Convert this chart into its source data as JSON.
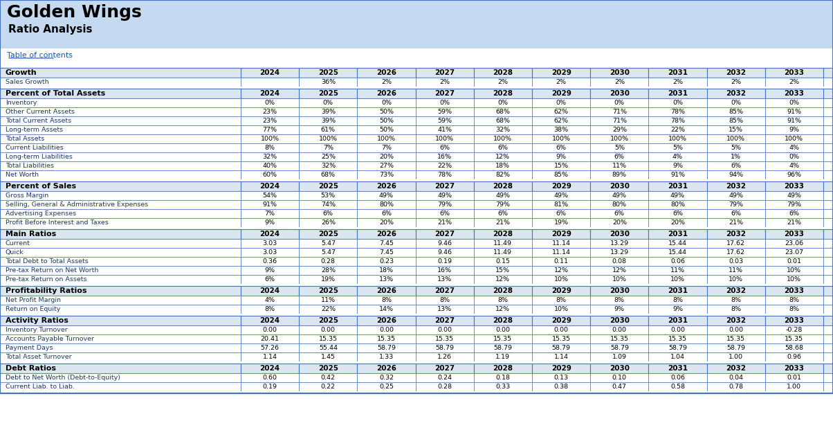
{
  "title": "Golden Wings",
  "subtitle": "Ratio Analysis",
  "link_text": "Table of contents",
  "header_bg": "#c5d9f1",
  "section_bg": "#dce6f1",
  "row_bg_white": "#ffffff",
  "row_bg_light": "#f0f4fa",
  "border_color": "#4472c4",
  "text_dark": "#000000",
  "text_blue": "#1f4e79",
  "link_color": "#1155cc",
  "years": [
    "2024",
    "2025",
    "2026",
    "2027",
    "2028",
    "2029",
    "2030",
    "2031",
    "2032",
    "2033"
  ],
  "sections": [
    {
      "name": "Growth",
      "rows": [
        {
          "label": "Sales Growth",
          "values": [
            "",
            "36%",
            "2%",
            "2%",
            "2%",
            "2%",
            "2%",
            "2%",
            "2%",
            "2%"
          ]
        }
      ]
    },
    {
      "name": "Percent of Total Assets",
      "rows": [
        {
          "label": "Inventory",
          "values": [
            "0%",
            "0%",
            "0%",
            "0%",
            "0%",
            "0%",
            "0%",
            "0%",
            "0%",
            "0%"
          ]
        },
        {
          "label": "Other Current Assets",
          "values": [
            "23%",
            "39%",
            "50%",
            "59%",
            "68%",
            "62%",
            "71%",
            "78%",
            "85%",
            "91%"
          ]
        },
        {
          "label": "Total Current Assets",
          "values": [
            "23%",
            "39%",
            "50%",
            "59%",
            "68%",
            "62%",
            "71%",
            "78%",
            "85%",
            "91%"
          ]
        },
        {
          "label": "Long-term Assets",
          "values": [
            "77%",
            "61%",
            "50%",
            "41%",
            "32%",
            "38%",
            "29%",
            "22%",
            "15%",
            "9%"
          ]
        },
        {
          "label": "Total Assets",
          "values": [
            "100%",
            "100%",
            "100%",
            "100%",
            "100%",
            "100%",
            "100%",
            "100%",
            "100%",
            "100%"
          ]
        },
        {
          "label": "Current Liabilities",
          "values": [
            "8%",
            "7%",
            "7%",
            "6%",
            "6%",
            "6%",
            "5%",
            "5%",
            "5%",
            "4%"
          ]
        },
        {
          "label": "Long-term Liabilities",
          "values": [
            "32%",
            "25%",
            "20%",
            "16%",
            "12%",
            "9%",
            "6%",
            "4%",
            "1%",
            "0%"
          ]
        },
        {
          "label": "Total Liabilities",
          "values": [
            "40%",
            "32%",
            "27%",
            "22%",
            "18%",
            "15%",
            "11%",
            "9%",
            "6%",
            "4%"
          ]
        },
        {
          "label": "Net Worth",
          "values": [
            "60%",
            "68%",
            "73%",
            "78%",
            "82%",
            "85%",
            "89%",
            "91%",
            "94%",
            "96%"
          ]
        }
      ]
    },
    {
      "name": "Percent of Sales",
      "rows": [
        {
          "label": "Gross Margin",
          "values": [
            "54%",
            "53%",
            "49%",
            "49%",
            "49%",
            "49%",
            "49%",
            "49%",
            "49%",
            "49%"
          ]
        },
        {
          "label": "Selling, General & Administrative Expenses",
          "values": [
            "91%",
            "74%",
            "80%",
            "79%",
            "79%",
            "81%",
            "80%",
            "80%",
            "79%",
            "79%"
          ]
        },
        {
          "label": "Advertising Expenses",
          "values": [
            "7%",
            "6%",
            "6%",
            "6%",
            "6%",
            "6%",
            "6%",
            "6%",
            "6%",
            "6%"
          ]
        },
        {
          "label": "Profit Before Interest and Taxes",
          "values": [
            "9%",
            "26%",
            "20%",
            "21%",
            "21%",
            "19%",
            "20%",
            "20%",
            "21%",
            "21%"
          ]
        }
      ]
    },
    {
      "name": "Main Ratios",
      "rows": [
        {
          "label": "Current",
          "values": [
            "3.03",
            "5.47",
            "7.45",
            "9.46",
            "11.49",
            "11.14",
            "13.29",
            "15.44",
            "17.62",
            "23.06"
          ]
        },
        {
          "label": "Quick",
          "values": [
            "3.03",
            "5.47",
            "7.45",
            "9.46",
            "11.49",
            "11.14",
            "13.29",
            "15.44",
            "17.62",
            "23.07"
          ]
        },
        {
          "label": "Total Debt to Total Assets",
          "values": [
            "0.36",
            "0.28",
            "0.23",
            "0.19",
            "0.15",
            "0.11",
            "0.08",
            "0.06",
            "0.03",
            "0.01"
          ]
        },
        {
          "label": "Pre-tax Return on Net Worth",
          "values": [
            "9%",
            "28%",
            "18%",
            "16%",
            "15%",
            "12%",
            "12%",
            "11%",
            "11%",
            "10%"
          ]
        },
        {
          "label": "Pre-tax Return on Assets",
          "values": [
            "6%",
            "19%",
            "13%",
            "13%",
            "12%",
            "10%",
            "10%",
            "10%",
            "10%",
            "10%"
          ]
        }
      ]
    },
    {
      "name": "Profitability Ratios",
      "rows": [
        {
          "label": "Net Profit Margin",
          "values": [
            "4%",
            "11%",
            "8%",
            "8%",
            "8%",
            "8%",
            "8%",
            "8%",
            "8%",
            "8%"
          ]
        },
        {
          "label": "Return on Equity",
          "values": [
            "8%",
            "22%",
            "14%",
            "13%",
            "12%",
            "10%",
            "9%",
            "9%",
            "8%",
            "8%"
          ]
        }
      ]
    },
    {
      "name": "Activity Ratios",
      "rows": [
        {
          "label": "Inventory Turnover",
          "values": [
            "0.00",
            "0.00",
            "0.00",
            "0.00",
            "0.00",
            "0.00",
            "0.00",
            "0.00",
            "0.00",
            "-0.28"
          ]
        },
        {
          "label": "Accounts Payable Turnover",
          "values": [
            "20.41",
            "15.35",
            "15.35",
            "15.35",
            "15.35",
            "15.35",
            "15.35",
            "15.35",
            "15.35",
            "15.35"
          ]
        },
        {
          "label": "Payment Days",
          "values": [
            "57.26",
            "55.44",
            "58.79",
            "58.79",
            "58.79",
            "58.79",
            "58.79",
            "58.79",
            "58.79",
            "58.68"
          ]
        },
        {
          "label": "Total Asset Turnover",
          "values": [
            "1.14",
            "1.45",
            "1.33",
            "1.26",
            "1.19",
            "1.14",
            "1.09",
            "1.04",
            "1.00",
            "0.96"
          ]
        }
      ]
    },
    {
      "name": "Debt Ratios",
      "rows": [
        {
          "label": "Debt to Net Worth (Debt-to-Equity)",
          "values": [
            "0.60",
            "0.42",
            "0.32",
            "0.24",
            "0.18",
            "0.13",
            "0.10",
            "0.06",
            "0.04",
            "0.01"
          ]
        },
        {
          "label": "Current Liab. to Liab.",
          "values": [
            "0.19",
            "0.22",
            "0.25",
            "0.28",
            "0.33",
            "0.38",
            "0.47",
            "0.58",
            "0.78",
            "1.00"
          ]
        }
      ]
    }
  ]
}
